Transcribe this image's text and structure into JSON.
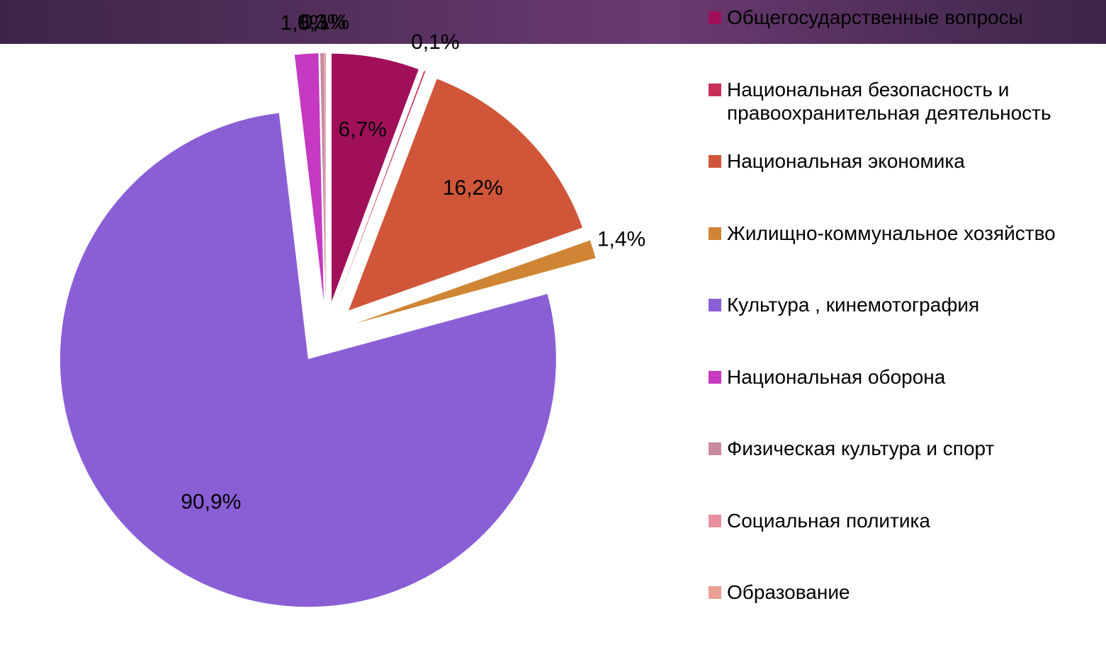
{
  "chart_data": {
    "type": "pie",
    "categories": [
      "Общегосударственные вопросы",
      "Национальная безопасность и правоохранительная деятельность",
      "Национальная экономика",
      "Жилищно-коммунальное хозяйство",
      "Культура , кинемотография",
      "Национальная оборона",
      "Физическая культура и спорт",
      "Социальная политика",
      "Образование"
    ],
    "values": [
      6.7,
      0.1,
      16.2,
      1.4,
      90.9,
      1.8,
      0.3,
      0.1,
      null
    ],
    "value_labels": [
      "6,7%",
      "0,1%",
      "16,2%",
      "1,4%",
      "90,9%",
      "1,8%",
      "0,3%",
      "0,1%",
      null
    ],
    "colors": [
      "#a0105a",
      "#c8305a",
      "#d0563a",
      "#d08535",
      "#8a5fd6",
      "#c53ac0",
      "#c88aa0",
      "#e890a0",
      "#e8a090"
    ],
    "legend": "right"
  }
}
